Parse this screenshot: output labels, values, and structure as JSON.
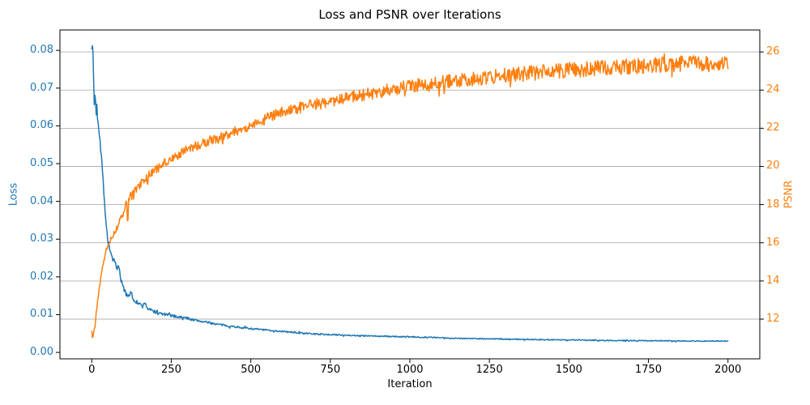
{
  "chart_data": {
    "type": "line",
    "title": "Loss and PSNR over Iterations",
    "xlabel": "Iteration",
    "grid": {
      "on": true,
      "color": "#b0b0b0",
      "orientation": "horizontal",
      "follows": "right_axis_ticks"
    },
    "legend": "none",
    "x_axis": {
      "lim": [
        -100,
        2100
      ],
      "ticks": [
        0,
        250,
        500,
        750,
        1000,
        1250,
        1500,
        1750,
        2000
      ]
    },
    "left_axis": {
      "label": "Loss",
      "color": "#1f77b4",
      "lim": [
        -0.0017,
        0.0854
      ],
      "tick_labels": [
        "0.00",
        "0.01",
        "0.02",
        "0.03",
        "0.04",
        "0.05",
        "0.06",
        "0.07",
        "0.08"
      ],
      "tick_values": [
        0.0,
        0.01,
        0.02,
        0.03,
        0.04,
        0.05,
        0.06,
        0.07,
        0.08
      ]
    },
    "right_axis": {
      "label": "PSNR",
      "color": "#ff7f0e",
      "lim": [
        9.92,
        27.15
      ],
      "tick_labels": [
        "12",
        "14",
        "16",
        "18",
        "20",
        "22",
        "24",
        "26"
      ],
      "tick_values": [
        12,
        14,
        16,
        18,
        20,
        22,
        24,
        26
      ]
    },
    "series": [
      {
        "name": "Loss",
        "axis": "left",
        "color": "#1f77b4",
        "linewidth": 1.5,
        "x_range": [
          0,
          2000
        ],
        "clamp_min": 0.0023,
        "clamp_max": 0.0835,
        "anchors": [
          [
            0,
            0.081
          ],
          [
            2,
            0.0806
          ],
          [
            4,
            0.0792
          ],
          [
            6,
            0.0722
          ],
          [
            8,
            0.0655
          ],
          [
            10,
            0.0686
          ],
          [
            12,
            0.066
          ],
          [
            14,
            0.0636
          ],
          [
            16,
            0.0662
          ],
          [
            18,
            0.063
          ],
          [
            20,
            0.0616
          ],
          [
            25,
            0.0572
          ],
          [
            30,
            0.0522
          ],
          [
            35,
            0.0462
          ],
          [
            40,
            0.0402
          ],
          [
            45,
            0.0342
          ],
          [
            50,
            0.03
          ],
          [
            55,
            0.0281
          ],
          [
            60,
            0.0262
          ],
          [
            65,
            0.025
          ],
          [
            70,
            0.0241
          ],
          [
            75,
            0.0231
          ],
          [
            80,
            0.0216
          ],
          [
            85,
            0.0231
          ],
          [
            90,
            0.0201
          ],
          [
            95,
            0.0181
          ],
          [
            100,
            0.017
          ],
          [
            110,
            0.0156
          ],
          [
            118,
            0.0146
          ],
          [
            124,
            0.0161
          ],
          [
            130,
            0.0141
          ],
          [
            140,
            0.0134
          ],
          [
            150,
            0.0128
          ],
          [
            160,
            0.0122
          ],
          [
            168,
            0.0133
          ],
          [
            175,
            0.0116
          ],
          [
            185,
            0.0112
          ],
          [
            200,
            0.0107
          ],
          [
            220,
            0.0102
          ],
          [
            240,
            0.0099
          ],
          [
            260,
            0.0096
          ],
          [
            280,
            0.0093
          ],
          [
            300,
            0.0091
          ],
          [
            320,
            0.0086
          ],
          [
            340,
            0.0083
          ],
          [
            360,
            0.008
          ],
          [
            380,
            0.0077
          ],
          [
            400,
            0.0074
          ],
          [
            430,
            0.007
          ],
          [
            460,
            0.0067
          ],
          [
            500,
            0.0063
          ],
          [
            540,
            0.006
          ],
          [
            580,
            0.0057
          ],
          [
            620,
            0.0054
          ],
          [
            660,
            0.0051
          ],
          [
            700,
            0.0049
          ],
          [
            750,
            0.0047
          ],
          [
            800,
            0.0046
          ],
          [
            850,
            0.0044
          ],
          [
            900,
            0.0043
          ],
          [
            950,
            0.0042
          ],
          [
            1000,
            0.0041
          ],
          [
            1060,
            0.004
          ],
          [
            1120,
            0.0038
          ],
          [
            1180,
            0.0037
          ],
          [
            1250,
            0.0036
          ],
          [
            1320,
            0.0035
          ],
          [
            1400,
            0.0034
          ],
          [
            1500,
            0.0033
          ],
          [
            1600,
            0.0032
          ],
          [
            1700,
            0.0031
          ],
          [
            1800,
            0.0031
          ],
          [
            1900,
            0.003
          ],
          [
            2000,
            0.003
          ]
        ],
        "noise_amp": [
          [
            0,
            0.0006
          ],
          [
            15,
            0.0012
          ],
          [
            60,
            0.0008
          ],
          [
            100,
            0.0006
          ],
          [
            150,
            0.0005
          ],
          [
            250,
            0.00035
          ],
          [
            500,
            0.00022
          ],
          [
            1000,
            0.00016
          ],
          [
            2000,
            0.00012
          ]
        ]
      },
      {
        "name": "PSNR",
        "axis": "right",
        "color": "#ff7f0e",
        "linewidth": 1.5,
        "x_range": [
          0,
          2000
        ],
        "clamp_min": 10.6,
        "clamp_max": 26.4,
        "anchors": [
          [
            0,
            11.3
          ],
          [
            3,
            10.85
          ],
          [
            6,
            11.3
          ],
          [
            10,
            11.6
          ],
          [
            14,
            12.3
          ],
          [
            18,
            12.9
          ],
          [
            22,
            13.4
          ],
          [
            26,
            13.9
          ],
          [
            30,
            14.3
          ],
          [
            35,
            14.8
          ],
          [
            40,
            15.2
          ],
          [
            45,
            15.6
          ],
          [
            50,
            15.85
          ],
          [
            55,
            16.0
          ],
          [
            60,
            16.2
          ],
          [
            65,
            16.35
          ],
          [
            70,
            16.5
          ],
          [
            75,
            16.65
          ],
          [
            80,
            16.8
          ],
          [
            90,
            17.2
          ],
          [
            100,
            17.6
          ],
          [
            107,
            18.0
          ],
          [
            110,
            18.2
          ],
          [
            113,
            16.7
          ],
          [
            116,
            18.3
          ],
          [
            125,
            18.5
          ],
          [
            135,
            18.7
          ],
          [
            145,
            18.9
          ],
          [
            155,
            19.1
          ],
          [
            165,
            19.3
          ],
          [
            172,
            19.5
          ],
          [
            175,
            18.7
          ],
          [
            178,
            19.6
          ],
          [
            190,
            19.7
          ],
          [
            200,
            19.8
          ],
          [
            215,
            20.0
          ],
          [
            230,
            20.2
          ],
          [
            250,
            20.4
          ],
          [
            270,
            20.6
          ],
          [
            290,
            20.8
          ],
          [
            310,
            21.0
          ],
          [
            330,
            21.1
          ],
          [
            350,
            21.2
          ],
          [
            375,
            21.4
          ],
          [
            400,
            21.5
          ],
          [
            430,
            21.7
          ],
          [
            460,
            21.9
          ],
          [
            500,
            22.1
          ],
          [
            540,
            22.5
          ],
          [
            580,
            22.75
          ],
          [
            620,
            22.95
          ],
          [
            660,
            23.1
          ],
          [
            700,
            23.25
          ],
          [
            750,
            23.4
          ],
          [
            800,
            23.6
          ],
          [
            850,
            23.75
          ],
          [
            900,
            23.9
          ],
          [
            950,
            24.05
          ],
          [
            1000,
            24.2
          ],
          [
            1060,
            24.35
          ],
          [
            1120,
            24.45
          ],
          [
            1180,
            24.55
          ],
          [
            1250,
            24.7
          ],
          [
            1320,
            24.8
          ],
          [
            1400,
            24.9
          ],
          [
            1500,
            25.05
          ],
          [
            1600,
            25.15
          ],
          [
            1700,
            25.25
          ],
          [
            1800,
            25.35
          ],
          [
            1900,
            25.4
          ],
          [
            2000,
            25.45
          ]
        ],
        "noise_amp": [
          [
            0,
            0.08
          ],
          [
            50,
            0.12
          ],
          [
            100,
            0.18
          ],
          [
            200,
            0.22
          ],
          [
            400,
            0.26
          ],
          [
            700,
            0.3
          ],
          [
            1000,
            0.34
          ],
          [
            1400,
            0.4
          ],
          [
            2000,
            0.42
          ]
        ]
      }
    ]
  }
}
